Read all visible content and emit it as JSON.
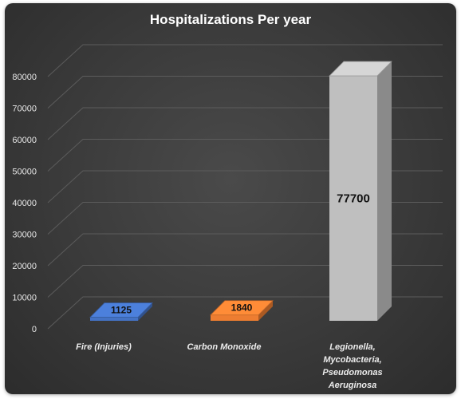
{
  "chart_data": {
    "type": "bar",
    "title": "Hospitalizations Per year",
    "categories": [
      [
        "Fire (Injuries)"
      ],
      [
        "Carbon Monoxide"
      ],
      [
        "Legionella,",
        "Mycobacteria,",
        "Pseudomonas",
        "Aeruginosa"
      ]
    ],
    "values": [
      1125,
      1840,
      77700
    ],
    "data_labels": [
      "1125",
      "1840",
      "77700"
    ],
    "ylim": [
      0,
      80000
    ],
    "yticks": [
      0,
      10000,
      20000,
      30000,
      40000,
      50000,
      60000,
      70000,
      80000
    ],
    "grid": true,
    "legend": "none",
    "style": "3d-column",
    "colors": {
      "bars": [
        "#4472C4",
        "#ED7D31",
        "#BFBFBF"
      ],
      "background": "#3a3a3a",
      "text": "#ffffff"
    }
  }
}
